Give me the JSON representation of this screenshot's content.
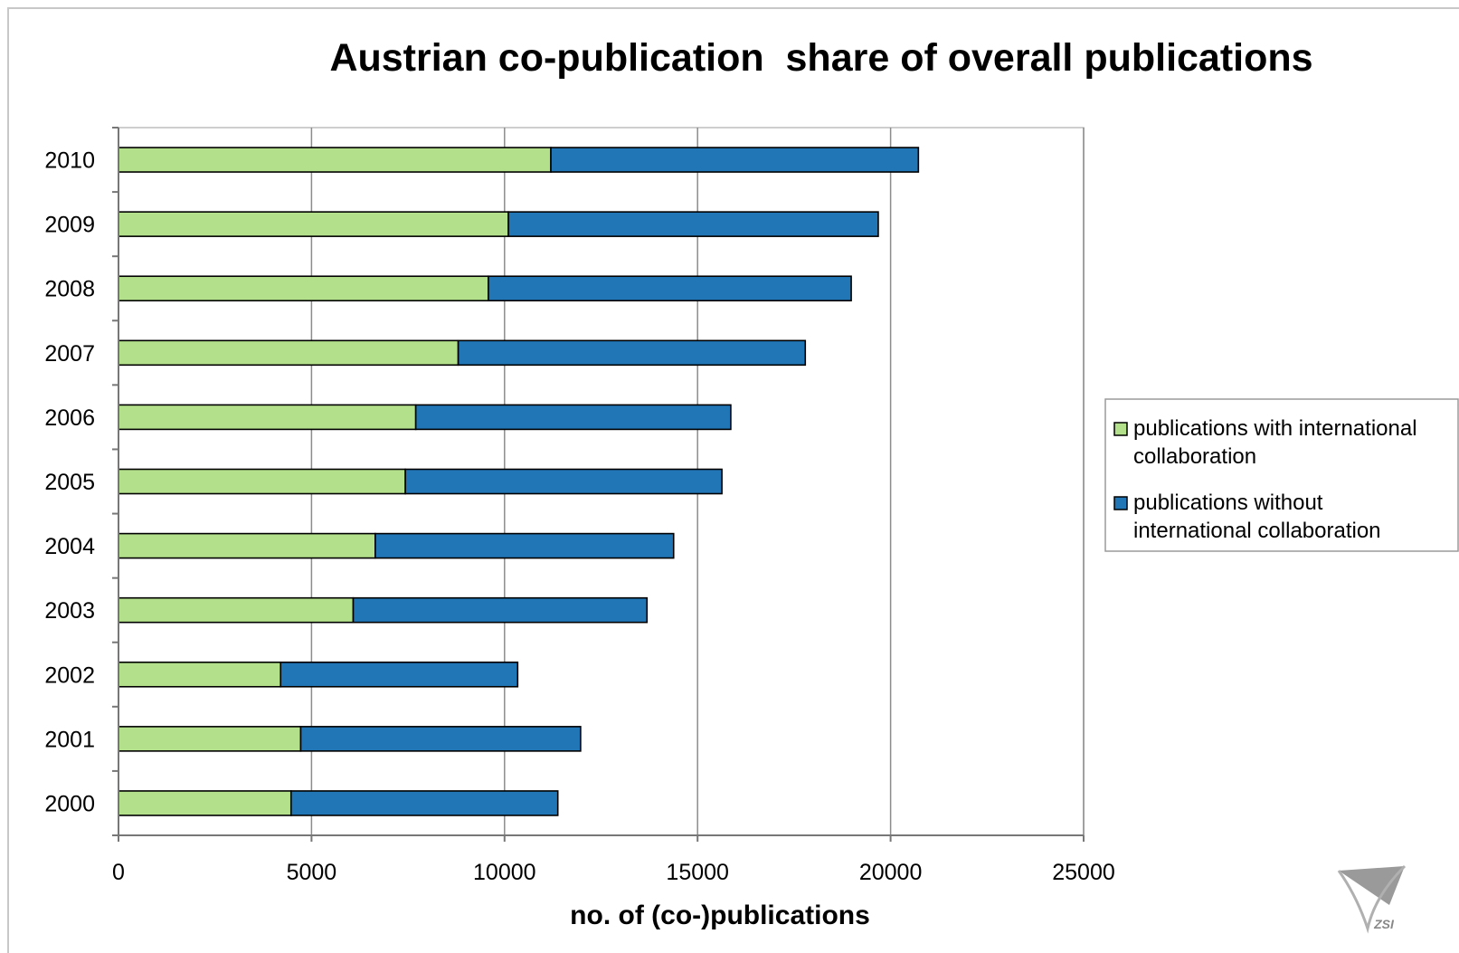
{
  "chart_data": {
    "type": "bar",
    "orientation": "horizontal",
    "stacked": true,
    "title": "Austrian co-publication  share of overall publications",
    "xlabel": "no. of (co-)publications",
    "ylabel": "",
    "xlim": [
      0,
      25000
    ],
    "x_ticks": [
      "0",
      "5000",
      "10000",
      "15000",
      "20000",
      "25000"
    ],
    "grid": "vertical",
    "legend_position": "right",
    "categories": [
      "2010",
      "2009",
      "2008",
      "2007",
      "2006",
      "2005",
      "2004",
      "2003",
      "2002",
      "2001",
      "2000"
    ],
    "series": [
      {
        "name": "publications with international collaboration",
        "legend_lines": [
          "publications with international",
          "collaboration"
        ],
        "color": "#b3e08a",
        "values": [
          11200,
          10100,
          9580,
          8800,
          7700,
          7430,
          6650,
          6080,
          4200,
          4720,
          4470
        ]
      },
      {
        "name": "publications without international collaboration",
        "legend_lines": [
          "publications without",
          "international collaboration"
        ],
        "color": "#2176b6",
        "values": [
          9520,
          9580,
          9400,
          8990,
          8160,
          8200,
          7730,
          7610,
          6140,
          7250,
          6910
        ]
      }
    ]
  },
  "logo": {
    "text": "ZSI",
    "color": "#8a8a8a"
  }
}
